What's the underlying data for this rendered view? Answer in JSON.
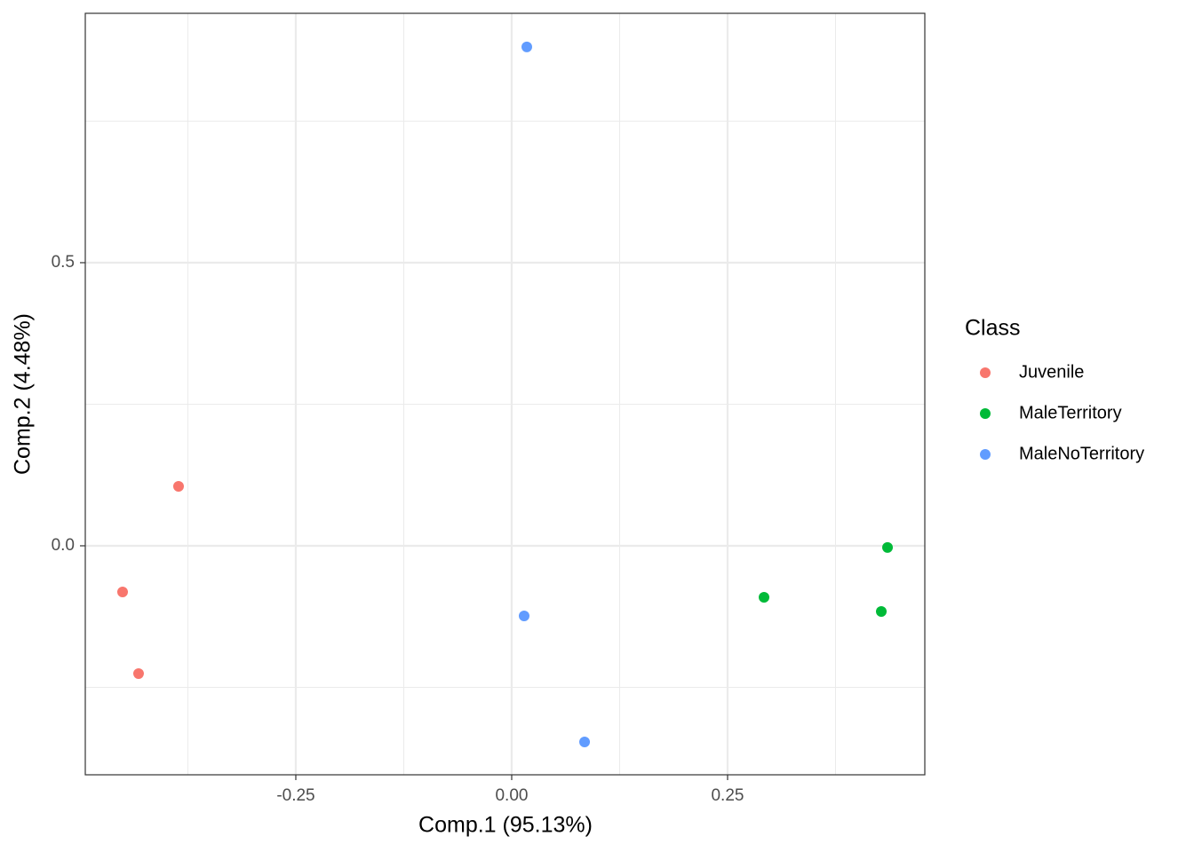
{
  "chart_data": {
    "type": "scatter",
    "xlabel": "Comp.1 (95.13%)",
    "ylabel": "Comp.2 (4.48%)",
    "legend_title": "Class",
    "legend_position": "right",
    "grid": true,
    "xlim": [
      -0.4938,
      0.4784
    ],
    "ylim": [
      -0.4044,
      0.9404
    ],
    "xticks": [
      -0.25,
      {
        "value": 0,
        "label": "0.00"
      },
      0.25
    ],
    "yticks": [
      {
        "value": 0,
        "label": "0.0"
      },
      0.5
    ],
    "x_minor_ticks": [
      -0.375,
      -0.125,
      0.125,
      0.375
    ],
    "y_minor_ticks": [
      -0.25,
      0.25,
      0.75
    ],
    "series": [
      {
        "name": "Juvenile",
        "color": "#F8766D",
        "x": [
          -0.4506,
          -0.3858,
          -0.4321
        ],
        "values": [
          -0.0815,
          0.105,
          -0.2257
        ]
      },
      {
        "name": "MaleTerritory",
        "color": "#00BA38",
        "x": [
          0.4352,
          0.2922,
          0.428
        ],
        "values": [
          -0.003,
          -0.0909,
          -0.116
        ]
      },
      {
        "name": "MaleNoTerritory",
        "color": "#619CFF",
        "x": [
          0.0175,
          0.0144,
          0.0844
        ],
        "values": [
          0.881,
          -0.1238,
          -0.3464
        ]
      }
    ]
  }
}
